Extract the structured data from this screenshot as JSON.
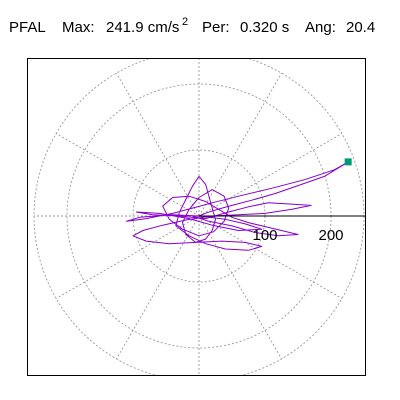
{
  "header": {
    "station": "PFAL",
    "max_label": "Max:",
    "max_value": "241.9 cm/s",
    "max_exponent": "2",
    "period_label": "Per:",
    "period_value": "0.320 s",
    "angle_label": "Ang:",
    "angle_value": "20.4"
  },
  "colors": {
    "trace": "#8800cc",
    "peak_marker": "#009977",
    "grid": "#999999",
    "axis": "#000000"
  },
  "chart_data": {
    "type": "scatter",
    "subtype": "polar orbit plot",
    "title": "",
    "radial_ticks": [
      100,
      200
    ],
    "radial_tick_labels": [
      "100",
      "200"
    ],
    "radial_max": 250,
    "spoke_angles_deg": [
      0,
      30,
      60,
      90,
      120,
      150,
      180,
      210,
      240,
      270,
      300,
      330
    ],
    "grid": true,
    "peak_point": {
      "x": 226,
      "y": 82,
      "label": ""
    },
    "series": [
      {
        "name": "",
        "points": [
          [
            0,
            0
          ],
          [
            12,
            5
          ],
          [
            28,
            10
          ],
          [
            50,
            16
          ],
          [
            80,
            24
          ],
          [
            115,
            34
          ],
          [
            150,
            46
          ],
          [
            190,
            60
          ],
          [
            226,
            82
          ],
          [
            205,
            70
          ],
          [
            160,
            55
          ],
          [
            110,
            42
          ],
          [
            60,
            30
          ],
          [
            20,
            20
          ],
          [
            -10,
            12
          ],
          [
            -40,
            4
          ],
          [
            -80,
            -4
          ],
          [
            -110,
            -8
          ],
          [
            -90,
            -2
          ],
          [
            -40,
            2
          ],
          [
            0,
            0
          ],
          [
            40,
            -5
          ],
          [
            70,
            -12
          ],
          [
            95,
            -20
          ],
          [
            60,
            -22
          ],
          [
            20,
            -14
          ],
          [
            -15,
            -4
          ],
          [
            -60,
            4
          ],
          [
            -95,
            6
          ],
          [
            -70,
            2
          ],
          [
            -30,
            0
          ],
          [
            10,
            -4
          ],
          [
            45,
            6
          ],
          [
            75,
            14
          ],
          [
            105,
            20
          ],
          [
            140,
            18
          ],
          [
            170,
            16
          ],
          [
            140,
            10
          ],
          [
            100,
            4
          ],
          [
            60,
            2
          ],
          [
            20,
            0
          ],
          [
            -20,
            -6
          ],
          [
            -55,
            -14
          ],
          [
            -85,
            -22
          ],
          [
            -100,
            -30
          ],
          [
            -80,
            -38
          ],
          [
            -45,
            -42
          ],
          [
            -5,
            -40
          ],
          [
            35,
            -38
          ],
          [
            70,
            -40
          ],
          [
            95,
            -46
          ],
          [
            75,
            -52
          ],
          [
            40,
            -50
          ],
          [
            10,
            -42
          ],
          [
            -15,
            -30
          ],
          [
            -35,
            -15
          ],
          [
            -30,
            5
          ],
          [
            -20,
            25
          ],
          [
            -10,
            45
          ],
          [
            0,
            60
          ],
          [
            10,
            48
          ],
          [
            15,
            30
          ],
          [
            20,
            12
          ],
          [
            25,
            -5
          ],
          [
            20,
            -22
          ],
          [
            10,
            -35
          ],
          [
            -5,
            -40
          ],
          [
            -20,
            -28
          ],
          [
            -25,
            -10
          ],
          [
            -15,
            10
          ],
          [
            0,
            28
          ],
          [
            20,
            40
          ],
          [
            38,
            30
          ],
          [
            45,
            12
          ],
          [
            38,
            -8
          ],
          [
            22,
            -24
          ],
          [
            0,
            -30
          ],
          [
            -25,
            -20
          ],
          [
            -45,
            -5
          ],
          [
            -55,
            15
          ],
          [
            -40,
            28
          ],
          [
            -15,
            30
          ],
          [
            10,
            22
          ],
          [
            30,
            10
          ],
          [
            50,
            -2
          ],
          [
            75,
            -10
          ],
          [
            100,
            -16
          ],
          [
            125,
            -22
          ],
          [
            150,
            -28
          ],
          [
            120,
            -30
          ],
          [
            85,
            -25
          ],
          [
            50,
            -15
          ],
          [
            15,
            -8
          ],
          [
            -10,
            0
          ],
          [
            0,
            0
          ]
        ]
      }
    ]
  }
}
